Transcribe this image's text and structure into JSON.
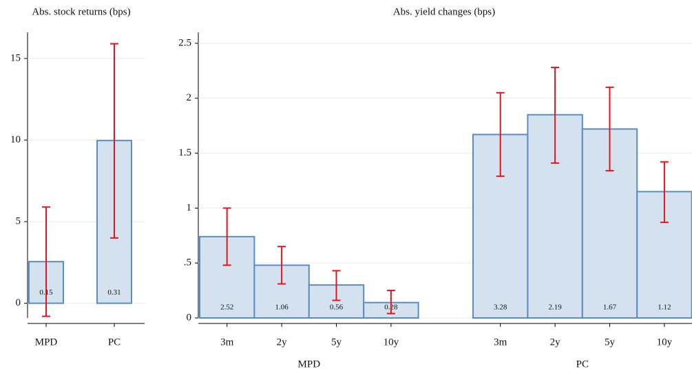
{
  "chart_data": [
    {
      "type": "bar",
      "title": "Abs. stock returns (bps)",
      "groups": [
        {
          "categories": [
            "MPD",
            "PC"
          ],
          "values": [
            2.55,
            9.97
          ],
          "ci_low": [
            -0.8,
            4.0
          ],
          "ci_high": [
            5.9,
            15.9
          ],
          "inner_labels": [
            0.15,
            0.31
          ]
        }
      ],
      "color": "#d4e1ee",
      "edge_color": "#5a8cc4",
      "error_color": "#e8121a",
      "ylim": [
        -0.9,
        16.6
      ],
      "yticks": [
        0,
        5,
        10,
        15
      ],
      "grid": true
    },
    {
      "type": "bar",
      "title": "Abs. yield changes (bps)",
      "groups": [
        {
          "name": "MPD",
          "categories": [
            "3m",
            "2y",
            "5y",
            "10y"
          ],
          "values": [
            0.74,
            0.48,
            0.3,
            0.14
          ],
          "ci_low": [
            0.48,
            0.31,
            0.16,
            0.04
          ],
          "ci_high": [
            1.0,
            0.65,
            0.43,
            0.25
          ],
          "inner_labels": [
            2.52,
            1.06,
            0.56,
            0.28
          ]
        },
        {
          "name": "PC",
          "categories": [
            "3m",
            "2y",
            "5y",
            "10y"
          ],
          "values": [
            1.67,
            1.85,
            1.72,
            1.15
          ],
          "ci_low": [
            1.29,
            1.41,
            1.34,
            0.87
          ],
          "ci_high": [
            2.05,
            2.28,
            2.1,
            1.42
          ],
          "inner_labels": [
            3.28,
            2.19,
            1.67,
            1.12
          ]
        }
      ],
      "color": "#d4e1ee",
      "edge_color": "#5a8cc4",
      "error_color": "#e8121a",
      "ylim": [
        0,
        2.6
      ],
      "yticks": [
        0,
        {
          "value": 0.5,
          "label": ".5"
        },
        1,
        1.5,
        2,
        2.5
      ],
      "grid": true
    }
  ]
}
